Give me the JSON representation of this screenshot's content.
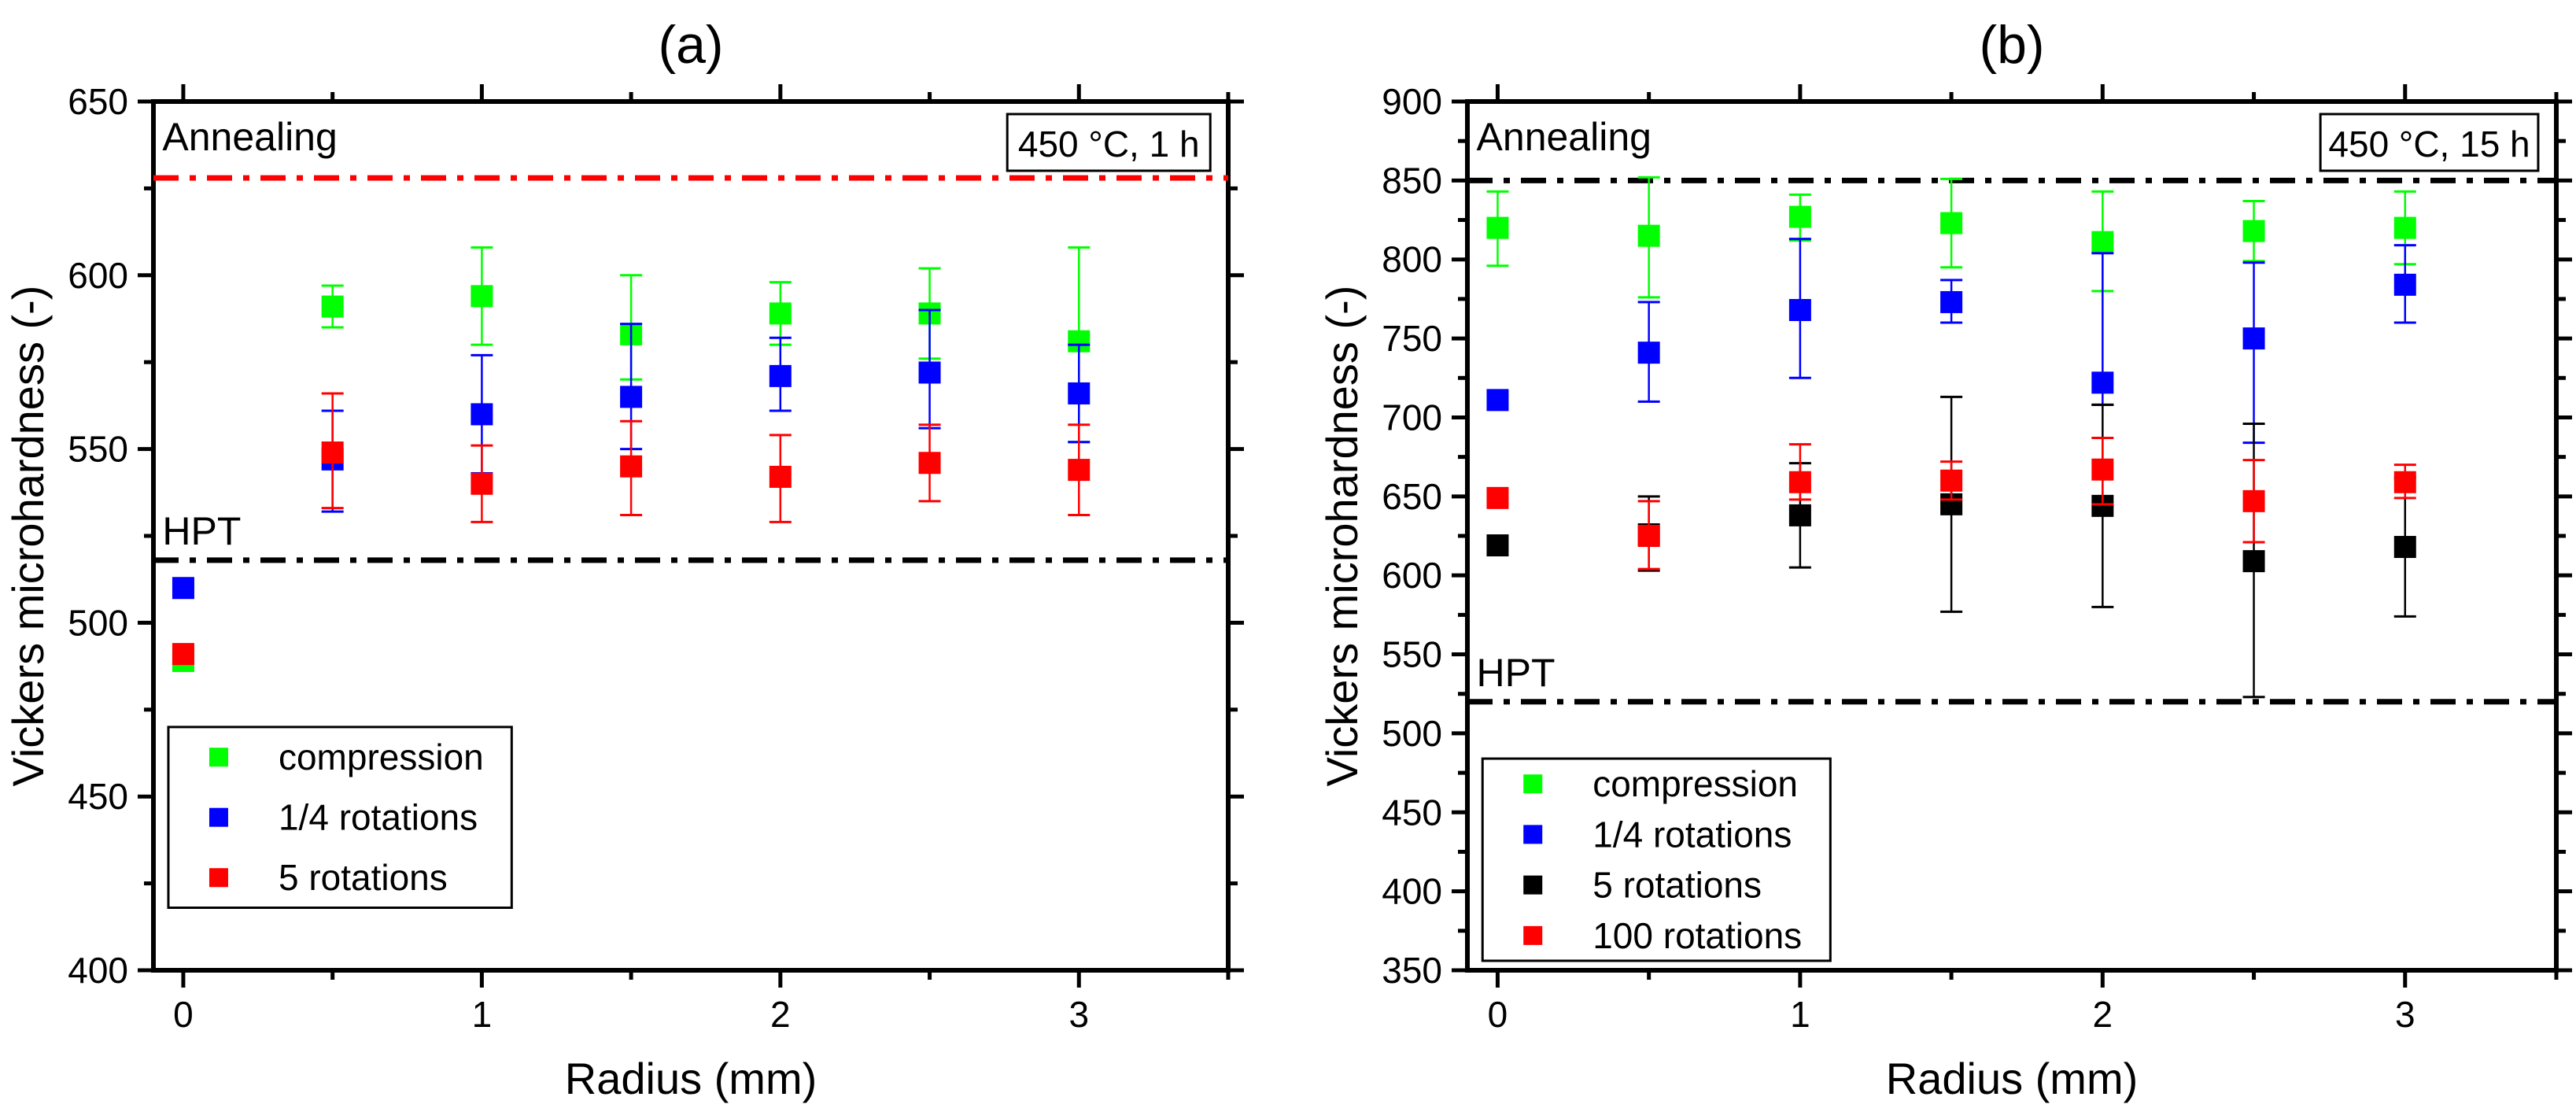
{
  "chart_data": [
    {
      "type": "scatter",
      "title": "(a)",
      "xlabel": "Radius (mm)",
      "ylabel": "Vickers microhardness (-)",
      "xlim": [
        -0.1,
        3.5
      ],
      "ylim": [
        400,
        650
      ],
      "xticks": [
        0,
        1,
        2,
        3
      ],
      "yticks": [
        400,
        450,
        500,
        550,
        600,
        650
      ],
      "grid": false,
      "legend_position": "bottom-left",
      "annotation_box": "450 °C, 1 h",
      "reference_lines": [
        {
          "label": "Annealing",
          "y": 628,
          "color": "#ff0000"
        },
        {
          "label": "HPT",
          "y": 518,
          "color": "#000000"
        }
      ],
      "series": [
        {
          "name": "compression",
          "color": "#00ff00",
          "x": [
            0,
            0.5,
            1,
            1.5,
            2,
            2.5,
            3
          ],
          "y": [
            489,
            591,
            594,
            583,
            589,
            589,
            581
          ],
          "err_low": [
            489,
            585,
            580,
            570,
            580,
            576,
            552
          ],
          "err_high": [
            489,
            597,
            608,
            600,
            598,
            602,
            608
          ]
        },
        {
          "name": "1/4 rotations",
          "color": "#0000ff",
          "x": [
            0,
            0.5,
            1,
            1.5,
            2,
            2.5,
            3
          ],
          "y": [
            510,
            547,
            560,
            565,
            571,
            572,
            566
          ],
          "err_low": [
            510,
            532,
            543,
            550,
            561,
            556,
            552
          ],
          "err_high": [
            510,
            561,
            577,
            586,
            582,
            590,
            580
          ]
        },
        {
          "name": "5 rotations",
          "color": "#ff0000",
          "x": [
            0,
            0.5,
            1,
            1.5,
            2,
            2.5,
            3
          ],
          "y": [
            491,
            549,
            540,
            545,
            542,
            546,
            544
          ],
          "err_low": [
            491,
            533,
            529,
            531,
            529,
            535,
            531
          ],
          "err_high": [
            491,
            566,
            551,
            558,
            554,
            557,
            557
          ]
        }
      ]
    },
    {
      "type": "scatter",
      "title": "(b)",
      "xlabel": "Radius (mm)",
      "ylabel": "Vickers microhardness (-)",
      "xlim": [
        -0.1,
        3.5
      ],
      "ylim": [
        350,
        900
      ],
      "xticks": [
        0,
        1,
        2,
        3
      ],
      "yticks": [
        350,
        400,
        450,
        500,
        550,
        600,
        650,
        700,
        750,
        800,
        850,
        900
      ],
      "grid": false,
      "legend_position": "bottom-left",
      "annotation_box": "450 °C, 15 h",
      "reference_lines": [
        {
          "label": "Annealing",
          "y": 850,
          "color": "#000000"
        },
        {
          "label": "HPT",
          "y": 520,
          "color": "#000000"
        }
      ],
      "series": [
        {
          "name": "compression",
          "color": "#00ff00",
          "x": [
            0,
            0.5,
            1,
            1.5,
            2,
            2.5,
            3
          ],
          "y": [
            820,
            815,
            827,
            823,
            811,
            818,
            820
          ],
          "err_low": [
            796,
            776,
            812,
            795,
            780,
            799,
            797
          ],
          "err_high": [
            843,
            852,
            841,
            851,
            843,
            837,
            843
          ]
        },
        {
          "name": "1/4 rotations",
          "color": "#0000ff",
          "x": [
            0,
            0.5,
            1,
            1.5,
            2,
            2.5,
            3
          ],
          "y": [
            711,
            741,
            768,
            773,
            722,
            750,
            784
          ],
          "err_low": [
            711,
            710,
            725,
            760,
            708,
            684,
            760
          ],
          "err_high": [
            711,
            773,
            813,
            787,
            804,
            798,
            809
          ]
        },
        {
          "name": "5 rotations",
          "color": "#000000",
          "x": [
            0,
            0.5,
            1,
            1.5,
            2,
            2.5,
            3
          ],
          "y": [
            619,
            626,
            638,
            645,
            644,
            609,
            618
          ],
          "err_low": [
            619,
            603,
            605,
            577,
            580,
            523,
            574
          ],
          "err_high": [
            619,
            650,
            671,
            713,
            708,
            696,
            662
          ]
        },
        {
          "name": "100 rotations",
          "color": "#ff0000",
          "x": [
            0,
            0.5,
            1,
            1.5,
            2,
            2.5,
            3
          ],
          "y": [
            649,
            625,
            659,
            660,
            667,
            647,
            659
          ],
          "err_low": [
            649,
            604,
            648,
            648,
            645,
            621,
            649
          ],
          "err_high": [
            649,
            647,
            683,
            672,
            687,
            673,
            670
          ]
        }
      ]
    }
  ]
}
